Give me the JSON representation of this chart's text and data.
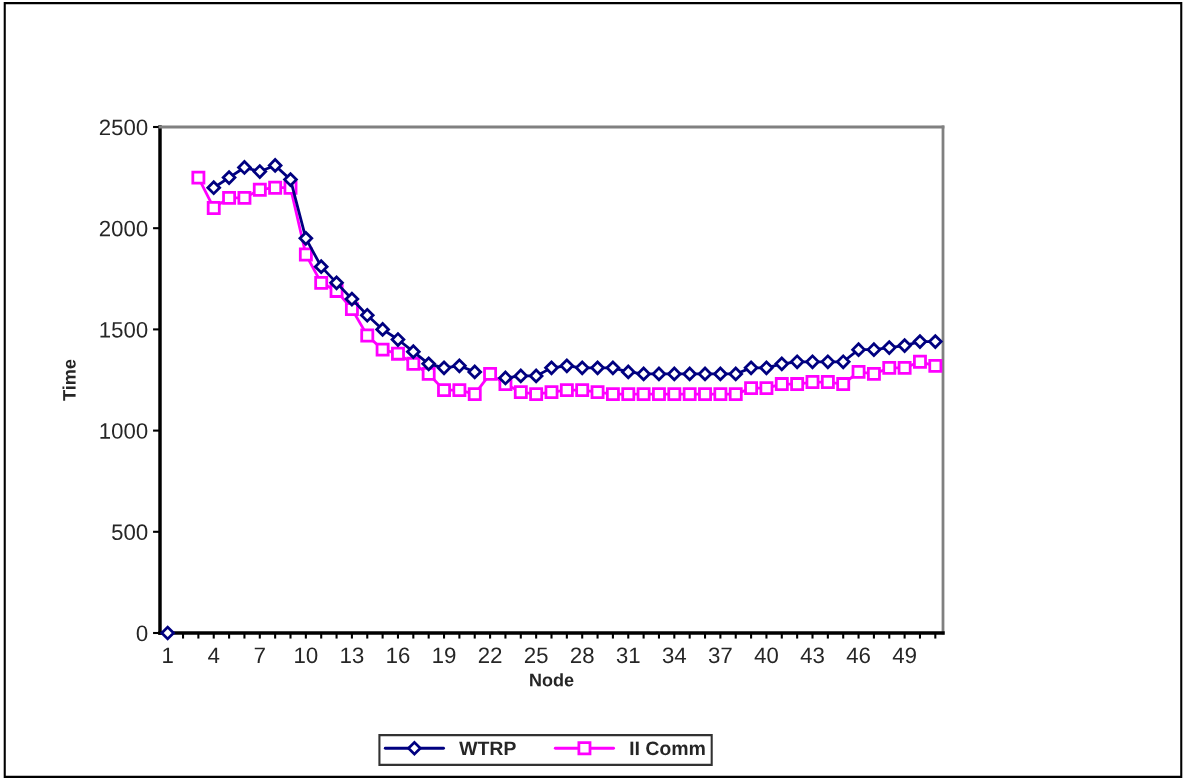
{
  "chart_data": {
    "type": "line",
    "xlabel": "Node",
    "ylabel": "Time",
    "categories": [
      "1",
      null,
      null,
      "4",
      null,
      null,
      "7",
      null,
      null,
      "10",
      null,
      null,
      "13",
      null,
      null,
      "16",
      null,
      null,
      "19",
      null,
      null,
      "22",
      null,
      null,
      "25",
      null,
      null,
      "28",
      null,
      null,
      "31",
      null,
      null,
      "34",
      null,
      null,
      "37",
      null,
      null,
      "40",
      null,
      null,
      "43",
      null,
      null,
      "46",
      null,
      null,
      "49",
      null,
      null
    ],
    "series": [
      {
        "name": "WTRP",
        "color": "#000080",
        "marker": "diamond",
        "values": [
          0,
          null,
          null,
          2200,
          2250,
          2300,
          2280,
          2310,
          2240,
          1950,
          1810,
          1730,
          1650,
          1570,
          1500,
          1450,
          1390,
          1330,
          1310,
          1320,
          1290,
          null,
          1260,
          1270,
          1270,
          1310,
          1320,
          1310,
          1310,
          1310,
          1290,
          1280,
          1280,
          1280,
          1280,
          1280,
          1280,
          1280,
          1310,
          1310,
          1330,
          1340,
          1340,
          1340,
          1340,
          1400,
          1400,
          1410,
          1420,
          1440,
          1440
        ]
      },
      {
        "name": "II Comm",
        "color": "#ff00ff",
        "marker": "square",
        "values": [
          null,
          null,
          2250,
          2100,
          2150,
          2150,
          2190,
          2200,
          2200,
          1870,
          1730,
          1690,
          1600,
          1470,
          1400,
          1380,
          1330,
          1280,
          1200,
          1200,
          1180,
          1280,
          1230,
          1190,
          1180,
          1190,
          1200,
          1200,
          1190,
          1180,
          1180,
          1180,
          1180,
          1180,
          1180,
          1180,
          1180,
          1180,
          1210,
          1210,
          1230,
          1230,
          1240,
          1240,
          1230,
          1290,
          1280,
          1310,
          1310,
          1340,
          1320
        ]
      }
    ],
    "ylim": [
      0,
      2500
    ],
    "yticks": [
      0,
      500,
      1000,
      1500,
      2000,
      2500
    ],
    "grid": false,
    "legend": "bottom"
  }
}
